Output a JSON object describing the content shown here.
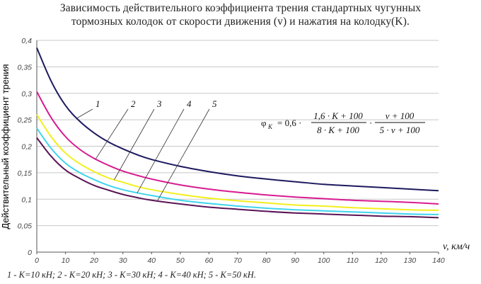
{
  "title_lines": [
    "Зависимость действительного коэффициента трения стандартных чугунных",
    "тормозных  колодок от скорости движения (v) и нажатия на колодку(K)."
  ],
  "chart_data": {
    "type": "line",
    "ylabel": "Действительный коэффициент трения",
    "xlabel": "v, км/ч",
    "xlim": [
      0,
      140
    ],
    "ylim": [
      0,
      0.4
    ],
    "x_ticks": [
      "0",
      "10",
      "20",
      "30",
      "40",
      "50",
      "60",
      "70",
      "80",
      "90",
      "100",
      "110",
      "120",
      "130",
      "140"
    ],
    "y_ticks": [
      "0",
      "0,05",
      "0,1",
      "0,15",
      "0,2",
      "0,25",
      "0,3",
      "0,35",
      "0,4"
    ],
    "grid": "horizontal",
    "x": [
      0,
      5,
      10,
      15,
      20,
      25,
      30,
      35,
      40,
      50,
      60,
      70,
      80,
      90,
      100,
      110,
      120,
      130,
      140
    ],
    "series": [
      {
        "name": "1",
        "color": "#1c1a5e",
        "values": [
          0.386,
          0.323,
          0.277,
          0.247,
          0.225,
          0.208,
          0.195,
          0.184,
          0.175,
          0.162,
          0.152,
          0.144,
          0.138,
          0.133,
          0.128,
          0.125,
          0.122,
          0.119,
          0.116
        ]
      },
      {
        "name": "2",
        "color": "#d81b90",
        "values": [
          0.303,
          0.254,
          0.218,
          0.194,
          0.177,
          0.164,
          0.153,
          0.145,
          0.138,
          0.127,
          0.119,
          0.113,
          0.108,
          0.104,
          0.101,
          0.098,
          0.096,
          0.094,
          0.091
        ]
      },
      {
        "name": "3",
        "color": "#f2ef1a",
        "values": [
          0.26,
          0.218,
          0.187,
          0.167,
          0.152,
          0.14,
          0.132,
          0.124,
          0.118,
          0.109,
          0.102,
          0.097,
          0.093,
          0.089,
          0.087,
          0.084,
          0.082,
          0.08,
          0.079
        ]
      },
      {
        "name": "4",
        "color": "#40d4ee",
        "values": [
          0.234,
          0.196,
          0.168,
          0.15,
          0.137,
          0.126,
          0.118,
          0.112,
          0.107,
          0.098,
          0.092,
          0.087,
          0.083,
          0.08,
          0.078,
          0.076,
          0.074,
          0.072,
          0.071
        ]
      },
      {
        "name": "5",
        "color": "#5b1456",
        "values": [
          0.216,
          0.181,
          0.155,
          0.139,
          0.126,
          0.117,
          0.109,
          0.103,
          0.098,
          0.091,
          0.085,
          0.081,
          0.077,
          0.074,
          0.072,
          0.07,
          0.068,
          0.067,
          0.065
        ]
      }
    ],
    "annotations": {
      "curve_labels": [
        "1",
        "2",
        "3",
        "4",
        "5"
      ],
      "formula": {
        "lhs": "φ",
        "lhs_sub": "K",
        "eq_coef": "= 0,6 ·",
        "num1": "1,6 · K + 100",
        "den1": "8 · K + 100",
        "num2": "v + 100",
        "den2": "5 · v + 100",
        "dot": "·"
      }
    },
    "legend_text": "1 - K=10 кН; 2 - K=20 кН; 3 - K=30 кН; 4 - K=40 кН; 5 - K=50 кН."
  }
}
